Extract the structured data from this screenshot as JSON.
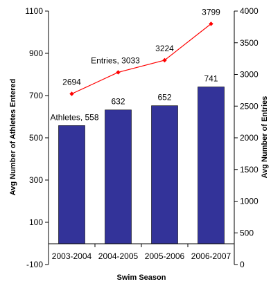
{
  "chart_data": {
    "type": "bar+line",
    "xlabel": "Swim Season",
    "ylabel_left": "Avg Number of  Athletes Entered",
    "ylabel_right": "Avg Number of Entries",
    "categories": [
      "2003-2004",
      "2004-2005",
      "2005-2006",
      "2006-2007"
    ],
    "ylim_left": [
      -100,
      1100
    ],
    "yticks_left": [
      -100,
      100,
      300,
      500,
      700,
      900,
      1100
    ],
    "ylim_right": [
      0,
      4000
    ],
    "yticks_right": [
      0,
      500,
      1000,
      1500,
      2000,
      2500,
      3000,
      3500,
      4000
    ],
    "series": [
      {
        "name": "Athletes",
        "type": "bar",
        "axis": "left",
        "color": "#333399",
        "values": [
          558,
          632,
          652,
          741
        ],
        "labels": [
          "Athletes, 558",
          "632",
          "652",
          "741"
        ]
      },
      {
        "name": "Entries",
        "type": "line",
        "axis": "right",
        "color": "#ff0000",
        "values": [
          2694,
          3033,
          3224,
          3799
        ],
        "labels": [
          "2694",
          "Entries, 3033",
          "3224",
          "3799"
        ]
      }
    ],
    "grid": false,
    "legend": "none"
  }
}
